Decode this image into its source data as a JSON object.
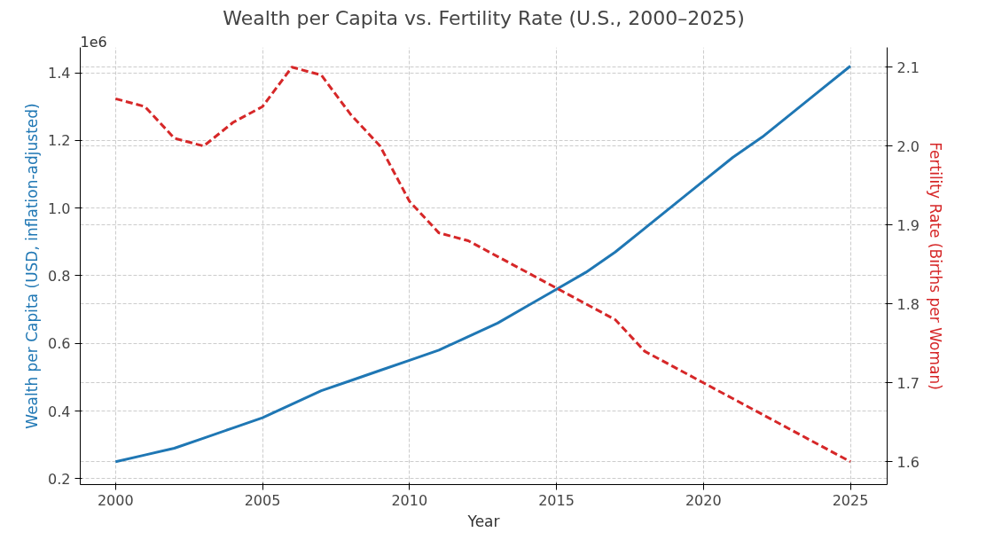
{
  "chart_data": {
    "type": "line",
    "title": "Wealth per Capita vs. Fertility Rate (U.S., 2000–2025)",
    "xlabel": "Year",
    "ylabel": "Wealth per Capita (USD, inflation-adjusted)",
    "y2label": "Fertility Rate (Births per Woman)",
    "x": [
      2000,
      2001,
      2002,
      2003,
      2004,
      2005,
      2006,
      2007,
      2008,
      2009,
      2010,
      2011,
      2012,
      2013,
      2014,
      2015,
      2016,
      2017,
      2018,
      2019,
      2020,
      2021,
      2022,
      2023,
      2024,
      2025
    ],
    "series": [
      {
        "color": "#1f77b4",
        "line_style": "solid",
        "values": [
          0.25,
          0.27,
          0.29,
          0.32,
          0.35,
          0.38,
          0.42,
          0.46,
          0.49,
          0.52,
          0.55,
          0.58,
          0.62,
          0.66,
          0.71,
          0.76,
          0.81,
          0.87,
          0.94,
          1.01,
          1.08,
          1.15,
          1.21,
          1.28,
          1.35,
          1.42
        ]
      },
      {
        "color": "#d62728",
        "line_style": "dashed",
        "axis": "y2",
        "values": [
          2.06,
          2.05,
          2.01,
          2.0,
          2.03,
          2.05,
          2.1,
          2.09,
          2.04,
          2.0,
          1.93,
          1.89,
          1.88,
          1.86,
          1.84,
          1.82,
          1.8,
          1.78,
          1.74,
          1.72,
          1.7,
          1.68,
          1.66,
          1.64,
          1.62,
          1.6
        ]
      }
    ],
    "xlim": [
      1998.8,
      2026.25
    ],
    "xticks": [
      2000,
      2005,
      2010,
      2015,
      2020,
      2025
    ],
    "ylim": [
      0.1825,
      1.475
    ],
    "yticks": [
      0.2,
      0.4,
      0.6,
      0.8,
      {
        "value": 1,
        "label": "1.0"
      },
      1.2,
      1.4
    ],
    "y2lim": [
      1.571,
      2.125
    ],
    "y2ticks": [
      1.6,
      1.7,
      1.8,
      1.9,
      {
        "value": 2,
        "label": "2.0"
      },
      2.1
    ],
    "annotations": [
      "1e6"
    ],
    "grid": true,
    "marker": "none"
  }
}
